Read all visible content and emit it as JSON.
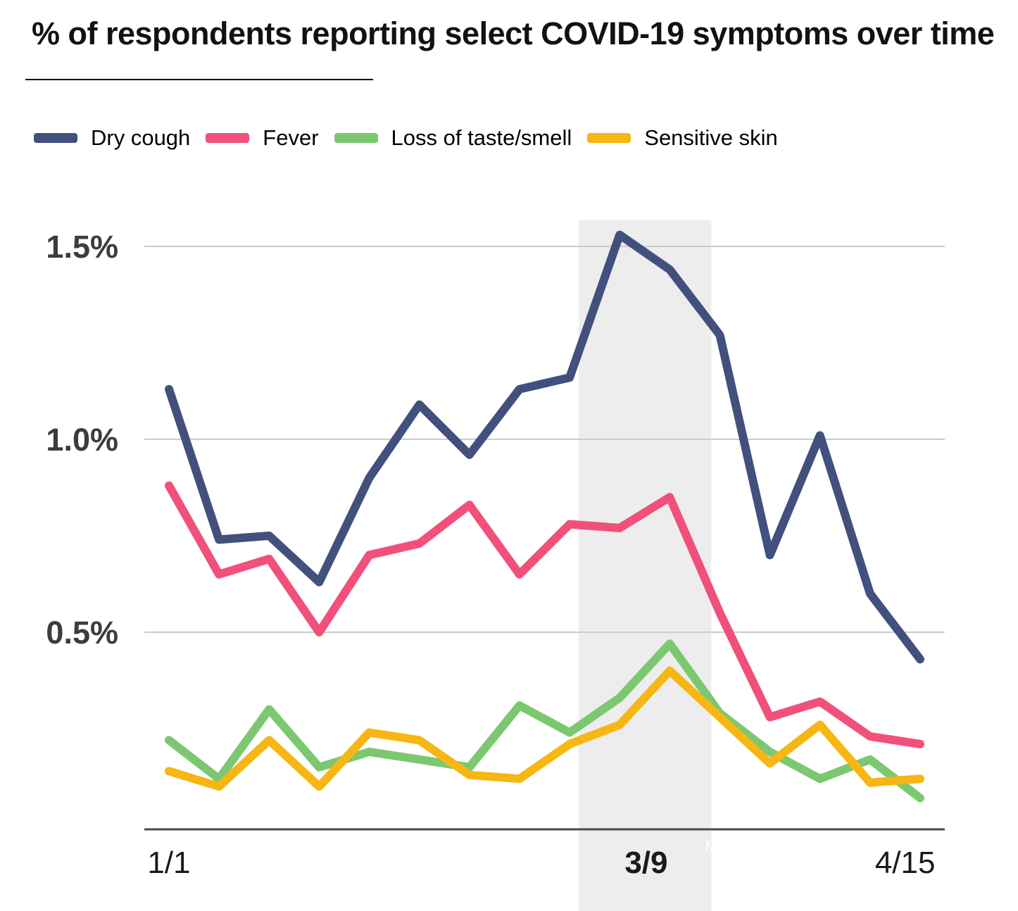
{
  "title": "% of respondents reporting select COVID-19 symptoms over time",
  "legend": {
    "items": [
      {
        "label": "Dry cough",
        "color": "#41507d"
      },
      {
        "label": "Fever",
        "color": "#f0507a"
      },
      {
        "label": "Loss of taste/smell",
        "color": "#7cc870"
      },
      {
        "label": "Sensitive skin",
        "color": "#f6b714"
      }
    ]
  },
  "colors": {
    "gridline": "#cbcbcb",
    "axis": "#4a4a4a",
    "highlight_band": "#ededed",
    "y_tick_text": "#3c3c3c",
    "x_tick_text": "#1a1a1a",
    "hidden_month_text": "#ffffff"
  },
  "chart_data": {
    "type": "line",
    "title": "% of respondents reporting select COVID-19 symptoms over time",
    "unit": "%",
    "n_points": 16,
    "grid": "horizontal-only",
    "legend_position": "top",
    "ylim": [
      0,
      1.57
    ],
    "y_ticks": [
      {
        "label": "0.5%",
        "value": 0.5
      },
      {
        "label": "1.0%",
        "value": 1.0
      },
      {
        "label": "1.5%",
        "value": 1.5
      }
    ],
    "x_visible_ticks": [
      {
        "label": "1/1",
        "pos": 0,
        "bold": false
      },
      {
        "label": "3/9",
        "pos": 9.53,
        "bold": true
      },
      {
        "label": "4/15",
        "pos": 14.7,
        "bold": false
      }
    ],
    "highlight_band": {
      "label": "3/9",
      "from_point": 8.18,
      "to_point": 10.83
    },
    "hidden_month_labels": [
      {
        "text": "Feb",
        "align": "end",
        "at_point": 8.21
      },
      {
        "text": "Mar",
        "align": "start",
        "at_point": 10.7
      }
    ],
    "series": [
      {
        "name": "Dry cough",
        "color": "#41507d",
        "values": [
          1.13,
          0.74,
          0.75,
          0.63,
          0.9,
          1.09,
          0.96,
          1.13,
          1.16,
          1.53,
          1.44,
          1.27,
          0.7,
          1.01,
          0.6,
          0.43
        ]
      },
      {
        "name": "Fever",
        "color": "#f0507a",
        "values": [
          0.88,
          0.65,
          0.69,
          0.5,
          0.7,
          0.73,
          0.83,
          0.65,
          0.78,
          0.77,
          0.85,
          0.55,
          0.28,
          0.32,
          0.23,
          0.21
        ]
      },
      {
        "name": "Loss of taste/smell",
        "color": "#7cc870",
        "values": [
          0.22,
          0.12,
          0.3,
          0.15,
          0.19,
          0.17,
          0.15,
          0.31,
          0.24,
          0.33,
          0.47,
          0.29,
          0.19,
          0.12,
          0.17,
          0.07
        ]
      },
      {
        "name": "Sensitive skin",
        "color": "#f6b714",
        "values": [
          0.14,
          0.1,
          0.22,
          0.1,
          0.24,
          0.22,
          0.13,
          0.12,
          0.21,
          0.26,
          0.4,
          0.28,
          0.16,
          0.26,
          0.11,
          0.12
        ]
      }
    ]
  }
}
